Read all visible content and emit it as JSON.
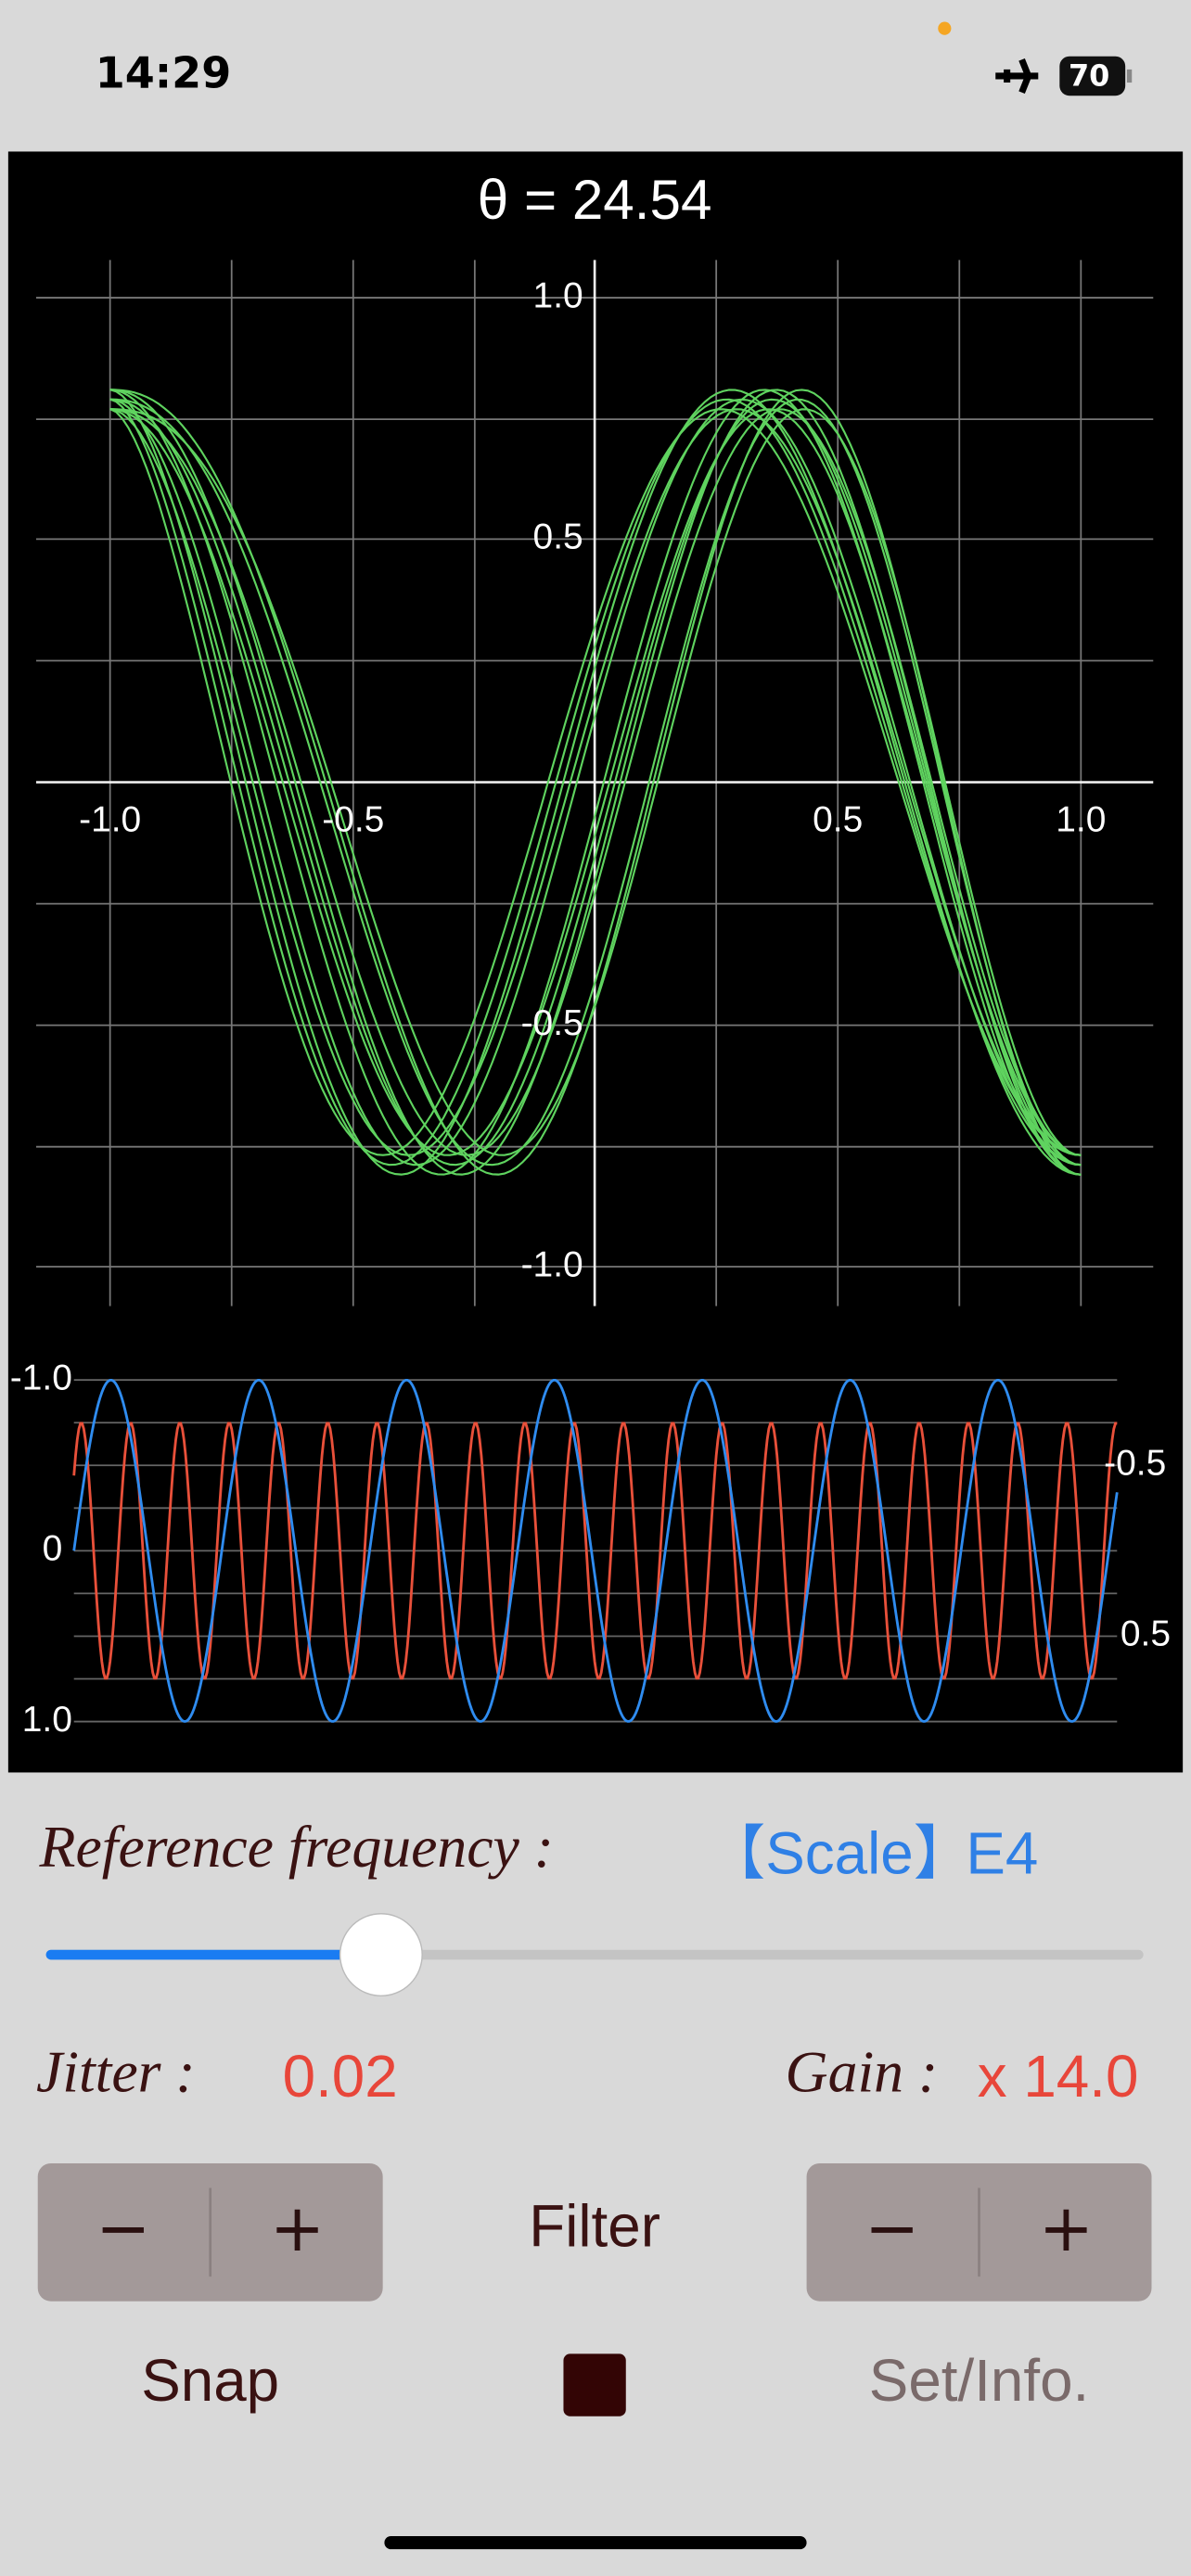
{
  "status": {
    "time": "14:29",
    "battery": "70"
  },
  "plot": {
    "title": "θ = 24.54",
    "y_labels": [
      "1.0",
      "0.5",
      "-0.5",
      "-1.0"
    ],
    "x_labels": [
      "-1.0",
      "-0.5",
      "0.5",
      "1.0"
    ]
  },
  "waveform": {
    "left_labels": [
      "-1.0",
      "0",
      "1.0"
    ],
    "right_labels": [
      "-0.5",
      "0.5"
    ]
  },
  "controls": {
    "reference_label": "Reference frequency :",
    "scale": "【Scale】",
    "note": "E4",
    "jitter_label": "Jitter :",
    "jitter_value": "0.02",
    "gain_label": "Gain :",
    "gain_value": "x 14.0",
    "left_stepper": [
      "−",
      "+"
    ],
    "filter": "Filter",
    "right_stepper": [
      "−",
      "+"
    ],
    "snap": "Snap",
    "set_info": "Set/Info."
  }
}
